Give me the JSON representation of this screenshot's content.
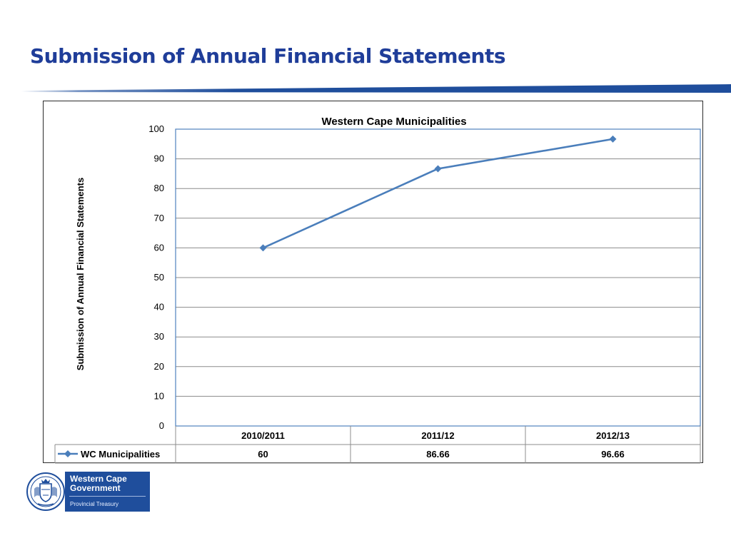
{
  "slide": {
    "title": "Submission of Annual Financial Statements"
  },
  "colors": {
    "title": "#1f3d99",
    "rule": "#1f4e9c",
    "series": "#4a7ebb",
    "plot_border": "#4f81bd",
    "grid": "#8c8c8c"
  },
  "chart_data": {
    "type": "line",
    "title": "Western Cape Municipalities",
    "xlabel": "",
    "ylabel": "Submission of Annual Financial Statements",
    "categories": [
      "2010/2011",
      "2011/12",
      "2012/13"
    ],
    "series": [
      {
        "name": "WC Municipalities",
        "values": [
          60,
          86.66,
          96.66
        ],
        "color": "#4a7ebb",
        "marker": "diamond"
      }
    ],
    "ylim": [
      0,
      100
    ],
    "yticks": [
      0,
      10,
      20,
      30,
      40,
      50,
      60,
      70,
      80,
      90,
      100
    ],
    "grid": true,
    "data_table": true,
    "legend": "in data table"
  },
  "logo": {
    "name": "Western Cape Government",
    "department": "Provincial Treasury",
    "icon": "coat-of-arms-icon"
  }
}
